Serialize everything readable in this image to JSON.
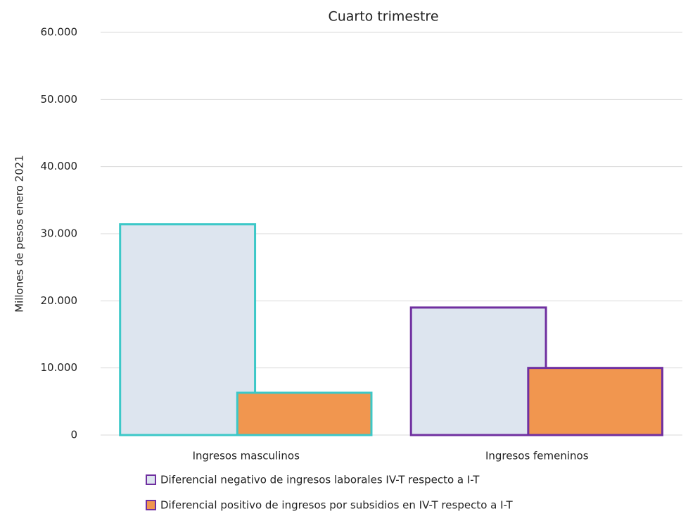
{
  "chart_data": {
    "type": "bar",
    "title": "Cuarto trimestre",
    "y_label": "Millones de pesos enero 2021",
    "categories": [
      "Ingresos masculinos",
      "Ingresos femeninos"
    ],
    "category_edge_colors": [
      "#3cc8c8",
      "#7030a0"
    ],
    "legend_edge_color": "#7030a0",
    "series": [
      {
        "name": "Diferencial negativo de ingresos laborales IV-T respecto a I-T",
        "color": "#dde5ef",
        "values": [
          31400,
          19000
        ]
      },
      {
        "name": "Diferencial positivo de ingresos por subsidios en IV-T respecto a I-T",
        "color": "#f1964f",
        "values": [
          6300,
          10000
        ]
      }
    ],
    "ylim": [
      0,
      60000
    ],
    "yticks": [
      0,
      {
        "value": 10000,
        "label": "10.000"
      },
      {
        "value": 20000,
        "label": "20.000"
      },
      {
        "value": 30000,
        "label": "30.000"
      },
      {
        "value": 40000,
        "label": "40.000"
      },
      {
        "value": 50000,
        "label": "50.000"
      },
      {
        "value": 60000,
        "label": "60.000"
      }
    ],
    "grid": true
  }
}
